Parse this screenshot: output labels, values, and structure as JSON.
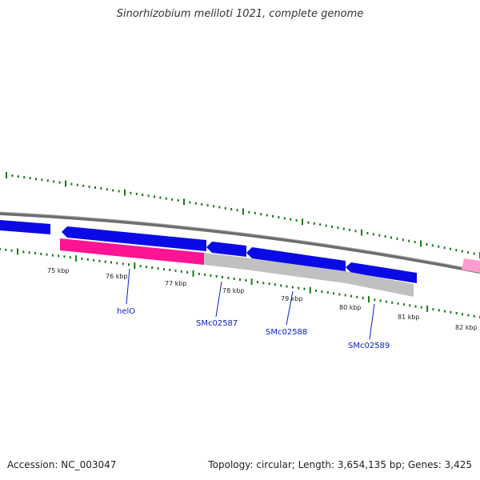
{
  "title": "Sinorhizobium meliloti 1021, complete genome",
  "footer": {
    "accession": "Accession: NC_003047",
    "summary": "Topology: circular; Length: 3,654,135 bp; Genes: 3,425"
  },
  "tick_labels": [
    "75 kbp",
    "76 kbp",
    "77 kbp",
    "78 kbp",
    "79 kbp",
    "80 kbp",
    "81 kbp",
    "82 kbp"
  ],
  "gene_labels": [
    "helO",
    "SMc02587",
    "SMc02588",
    "SMc02589"
  ],
  "colors": {
    "backbone": "#808080",
    "cds": "#0a0ae6",
    "gene_primary": "#ff1493",
    "gene_secondary": "#c0c0c0",
    "gene_far": "#ff9ccf",
    "tick": "#1a7a1a",
    "label": "#0a1ec8"
  }
}
